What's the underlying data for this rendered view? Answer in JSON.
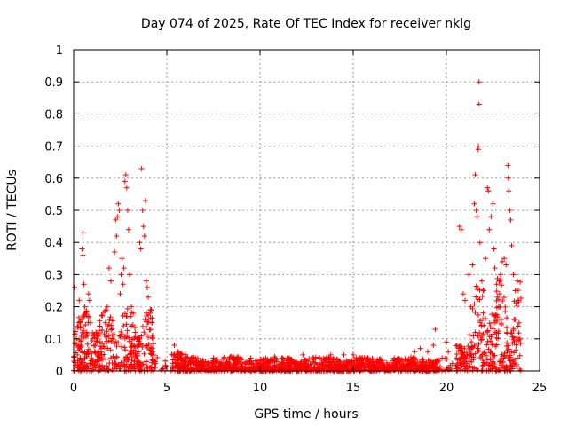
{
  "chart_data": {
    "type": "scatter",
    "title": "Day 074 of 2025, Rate Of TEC Index for receiver nklg",
    "xlabel": "GPS time / hours",
    "ylabel": "ROTI / TECUs",
    "xlim": [
      0,
      25
    ],
    "ylim": [
      0,
      1
    ],
    "xticks": [
      "0",
      "5",
      "10",
      "15",
      "20",
      "25"
    ],
    "yticks": [
      "0",
      "0.1",
      "0.2",
      "0.3",
      "0.4",
      "0.5",
      "0.6",
      "0.7",
      "0.8",
      "0.9",
      "1"
    ],
    "grid": true,
    "marker": "+",
    "color": "#ff0000",
    "points": [
      [
        0.05,
        0.26
      ],
      [
        0.15,
        0.1
      ],
      [
        0.2,
        0.05
      ],
      [
        0.3,
        0.22
      ],
      [
        0.35,
        0.15
      ],
      [
        0.4,
        0.08
      ],
      [
        0.45,
        0.38
      ],
      [
        0.5,
        0.36
      ],
      [
        0.5,
        0.43
      ],
      [
        0.55,
        0.27
      ],
      [
        0.6,
        0.2
      ],
      [
        0.65,
        0.18
      ],
      [
        0.7,
        0.12
      ],
      [
        0.75,
        0.06
      ],
      [
        0.8,
        0.24
      ],
      [
        0.85,
        0.22
      ],
      [
        0.9,
        0.15
      ],
      [
        1.0,
        0.1
      ],
      [
        1.1,
        0.08
      ],
      [
        1.2,
        0.12
      ],
      [
        1.3,
        0.06
      ],
      [
        1.5,
        0.05
      ],
      [
        1.7,
        0.15
      ],
      [
        1.8,
        0.2
      ],
      [
        1.9,
        0.32
      ],
      [
        2.0,
        0.28
      ],
      [
        2.1,
        0.1
      ],
      [
        2.2,
        0.37
      ],
      [
        2.25,
        0.47
      ],
      [
        2.3,
        0.42
      ],
      [
        2.35,
        0.48
      ],
      [
        2.4,
        0.52
      ],
      [
        2.45,
        0.5
      ],
      [
        2.5,
        0.24
      ],
      [
        2.55,
        0.3
      ],
      [
        2.6,
        0.35
      ],
      [
        2.65,
        0.27
      ],
      [
        2.7,
        0.32
      ],
      [
        2.75,
        0.59
      ],
      [
        2.8,
        0.61
      ],
      [
        2.85,
        0.57
      ],
      [
        2.9,
        0.5
      ],
      [
        2.95,
        0.44
      ],
      [
        3.0,
        0.3
      ],
      [
        3.1,
        0.2
      ],
      [
        3.2,
        0.18
      ],
      [
        3.3,
        0.12
      ],
      [
        3.4,
        0.1
      ],
      [
        3.5,
        0.08
      ],
      [
        3.55,
        0.4
      ],
      [
        3.6,
        0.38
      ],
      [
        3.65,
        0.63
      ],
      [
        3.7,
        0.5
      ],
      [
        3.75,
        0.45
      ],
      [
        3.8,
        0.42
      ],
      [
        3.85,
        0.53
      ],
      [
        3.9,
        0.28
      ],
      [
        3.95,
        0.26
      ],
      [
        4.0,
        0.23
      ],
      [
        4.1,
        0.18
      ],
      [
        4.2,
        0.15
      ],
      [
        4.3,
        0.05
      ],
      [
        5.4,
        0.08
      ],
      [
        5.6,
        0.06
      ],
      [
        5.8,
        0.05
      ],
      [
        6.2,
        0.03
      ],
      [
        7.5,
        0.04
      ],
      [
        8.5,
        0.04
      ],
      [
        9.5,
        0.04
      ],
      [
        10.5,
        0.03
      ],
      [
        11.5,
        0.04
      ],
      [
        12.3,
        0.05
      ],
      [
        13.2,
        0.04
      ],
      [
        13.8,
        0.05
      ],
      [
        14.5,
        0.05
      ],
      [
        15.0,
        0.05
      ],
      [
        15.3,
        0.04
      ],
      [
        16.5,
        0.03
      ],
      [
        17.2,
        0.04
      ],
      [
        17.8,
        0.03
      ],
      [
        18.3,
        0.06
      ],
      [
        18.6,
        0.07
      ],
      [
        19.0,
        0.06
      ],
      [
        19.3,
        0.08
      ],
      [
        19.4,
        0.13
      ],
      [
        20.0,
        0.09
      ],
      [
        20.1,
        0.06
      ],
      [
        20.7,
        0.45
      ],
      [
        20.8,
        0.44
      ],
      [
        20.9,
        0.24
      ],
      [
        21.0,
        0.22
      ],
      [
        21.2,
        0.3
      ],
      [
        21.3,
        0.2
      ],
      [
        21.4,
        0.33
      ],
      [
        21.5,
        0.52
      ],
      [
        21.55,
        0.61
      ],
      [
        21.6,
        0.5
      ],
      [
        21.65,
        0.48
      ],
      [
        21.7,
        0.69
      ],
      [
        21.72,
        0.7
      ],
      [
        21.75,
        0.9
      ],
      [
        21.75,
        0.83
      ],
      [
        21.8,
        0.4
      ],
      [
        21.9,
        0.28
      ],
      [
        22.0,
        0.25
      ],
      [
        22.1,
        0.35
      ],
      [
        22.2,
        0.57
      ],
      [
        22.25,
        0.56
      ],
      [
        22.3,
        0.44
      ],
      [
        22.4,
        0.48
      ],
      [
        22.5,
        0.52
      ],
      [
        22.55,
        0.38
      ],
      [
        22.6,
        0.32
      ],
      [
        22.7,
        0.27
      ],
      [
        22.8,
        0.2
      ],
      [
        22.9,
        0.3
      ],
      [
        23.0,
        0.34
      ],
      [
        23.1,
        0.35
      ],
      [
        23.2,
        0.33
      ],
      [
        23.3,
        0.64
      ],
      [
        23.32,
        0.6
      ],
      [
        23.35,
        0.56
      ],
      [
        23.4,
        0.5
      ],
      [
        23.45,
        0.47
      ],
      [
        23.5,
        0.39
      ],
      [
        23.6,
        0.3
      ],
      [
        23.7,
        0.25
      ],
      [
        23.8,
        0.28
      ],
      [
        23.85,
        0.22
      ],
      [
        23.9,
        0.15
      ],
      [
        23.95,
        0.1
      ]
    ]
  }
}
